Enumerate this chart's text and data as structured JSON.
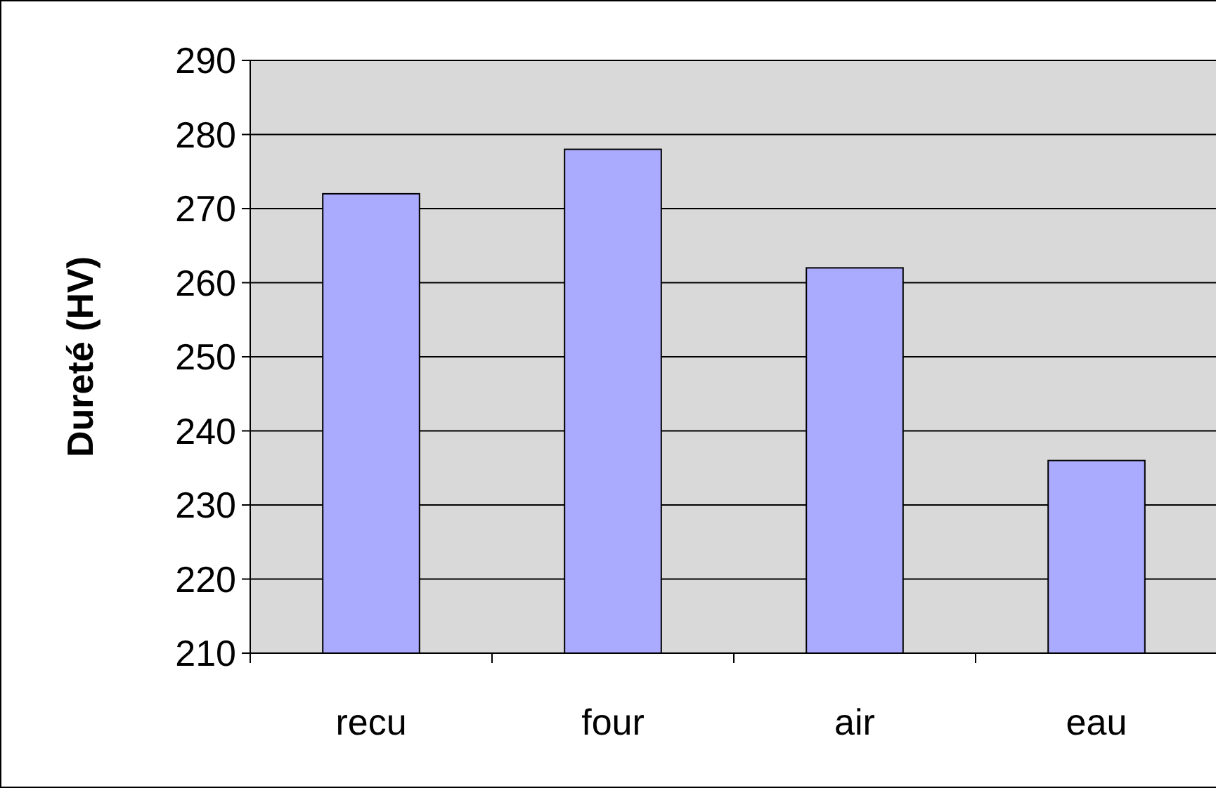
{
  "chart_data": {
    "type": "bar",
    "ylabel": "Dureté (HV)",
    "categories": [
      "recu",
      "four",
      "air",
      "eau"
    ],
    "values": [
      272,
      278,
      262,
      236
    ],
    "color": "#aaaaff",
    "ylim": [
      210,
      290
    ],
    "yticks": [
      210,
      220,
      230,
      240,
      250,
      260,
      270,
      280,
      290
    ],
    "grid": "y"
  }
}
